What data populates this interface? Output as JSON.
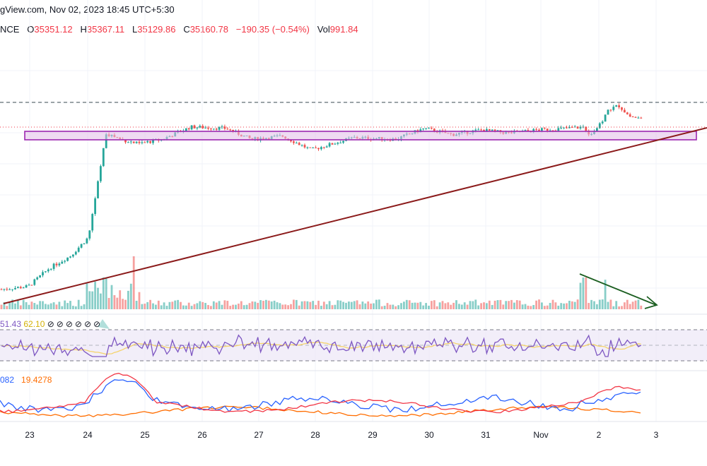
{
  "header": {
    "line1": "gView.com, Nov 02, 2023 18:45 UTC+5:30",
    "symbol": "NCE",
    "o_label": "O",
    "o_value": "35351.12",
    "h_label": "H",
    "h_value": "35367.11",
    "l_label": "L",
    "l_value": "35129.86",
    "c_label": "C",
    "c_value": "35160.78",
    "change": "−190.35 (−0.54%)",
    "vol_label": "Vol",
    "vol_value": "991.84"
  },
  "rsi": {
    "value": "51.43",
    "ma": "62.10"
  },
  "adx": {
    "value": "082",
    "value2": "19.4278"
  },
  "colors": {
    "up": "#26a69a",
    "down": "#ef5350",
    "zone_fill": "#e1bee7",
    "zone_stroke": "#9c27b0",
    "trend": "#8b1a1a",
    "arrow": "#1b5e20",
    "rsi": "#7e57c2",
    "rsi_ma": "#f5d36b",
    "adx_blue": "#2962ff",
    "adx_red": "#f23645",
    "adx_orange": "#ff6d00"
  },
  "chart_data": {
    "type": "candlestick",
    "x_ticks": [
      "23",
      "24",
      "25",
      "26",
      "27",
      "28",
      "29",
      "30",
      "31",
      "Nov",
      "2",
      "3"
    ],
    "ylim_approx": [
      28500,
      36500
    ],
    "anchors_price": [
      [
        0,
        29600
      ],
      [
        40,
        29700
      ],
      [
        70,
        30300
      ],
      [
        100,
        30700
      ],
      [
        125,
        31300
      ],
      [
        135,
        32600
      ],
      [
        150,
        34700
      ],
      [
        170,
        34500
      ],
      [
        195,
        34350
      ],
      [
        230,
        34500
      ],
      [
        270,
        34900
      ],
      [
        320,
        34850
      ],
      [
        355,
        34500
      ],
      [
        400,
        34600
      ],
      [
        440,
        34150
      ],
      [
        500,
        34550
      ],
      [
        560,
        34500
      ],
      [
        600,
        34850
      ],
      [
        640,
        34650
      ],
      [
        680,
        34800
      ],
      [
        720,
        34700
      ],
      [
        760,
        34800
      ],
      [
        800,
        34850
      ],
      [
        825,
        34900
      ],
      [
        835,
        34650
      ],
      [
        850,
        35000
      ],
      [
        860,
        35450
      ],
      [
        875,
        35600
      ],
      [
        890,
        35250
      ],
      [
        908,
        35160
      ]
    ],
    "annotations": [
      "horizontal resistance zone near 35000",
      "ascending trendline",
      "dashed level near 35700",
      "declining volume arrow"
    ],
    "series": [
      {
        "name": "RSI",
        "values": [
          51.43
        ]
      },
      {
        "name": "RSI MA",
        "values": [
          62.1
        ]
      }
    ]
  }
}
